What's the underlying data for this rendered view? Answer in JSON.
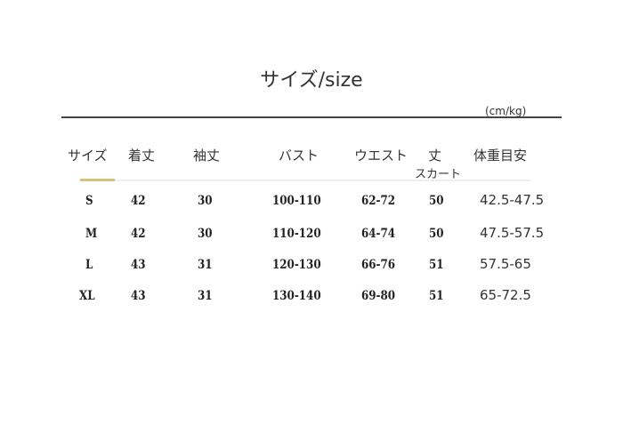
{
  "title": "サイズ/size",
  "unit": "(cm/kg)",
  "headers": [
    "サイズ",
    "着丈",
    "袖丈",
    "バスト",
    "ウエスト",
    "丈",
    "体重目安"
  ],
  "skirt_subheader": "スカート",
  "accent_color": "#d8c17a",
  "rows": [
    [
      "S",
      "42",
      "30",
      "100-110",
      "62-72",
      "50",
      "42.5-47.5"
    ],
    [
      "M",
      "42",
      "30",
      "110-120",
      "64-74",
      "50",
      "47.5-57.5"
    ],
    [
      "L",
      "43",
      "31",
      "120-130",
      "66-76",
      "51",
      "57.5-65"
    ],
    [
      "XL",
      "43",
      "31",
      "130-140",
      "69-80",
      "51",
      "65-72.5"
    ]
  ]
}
